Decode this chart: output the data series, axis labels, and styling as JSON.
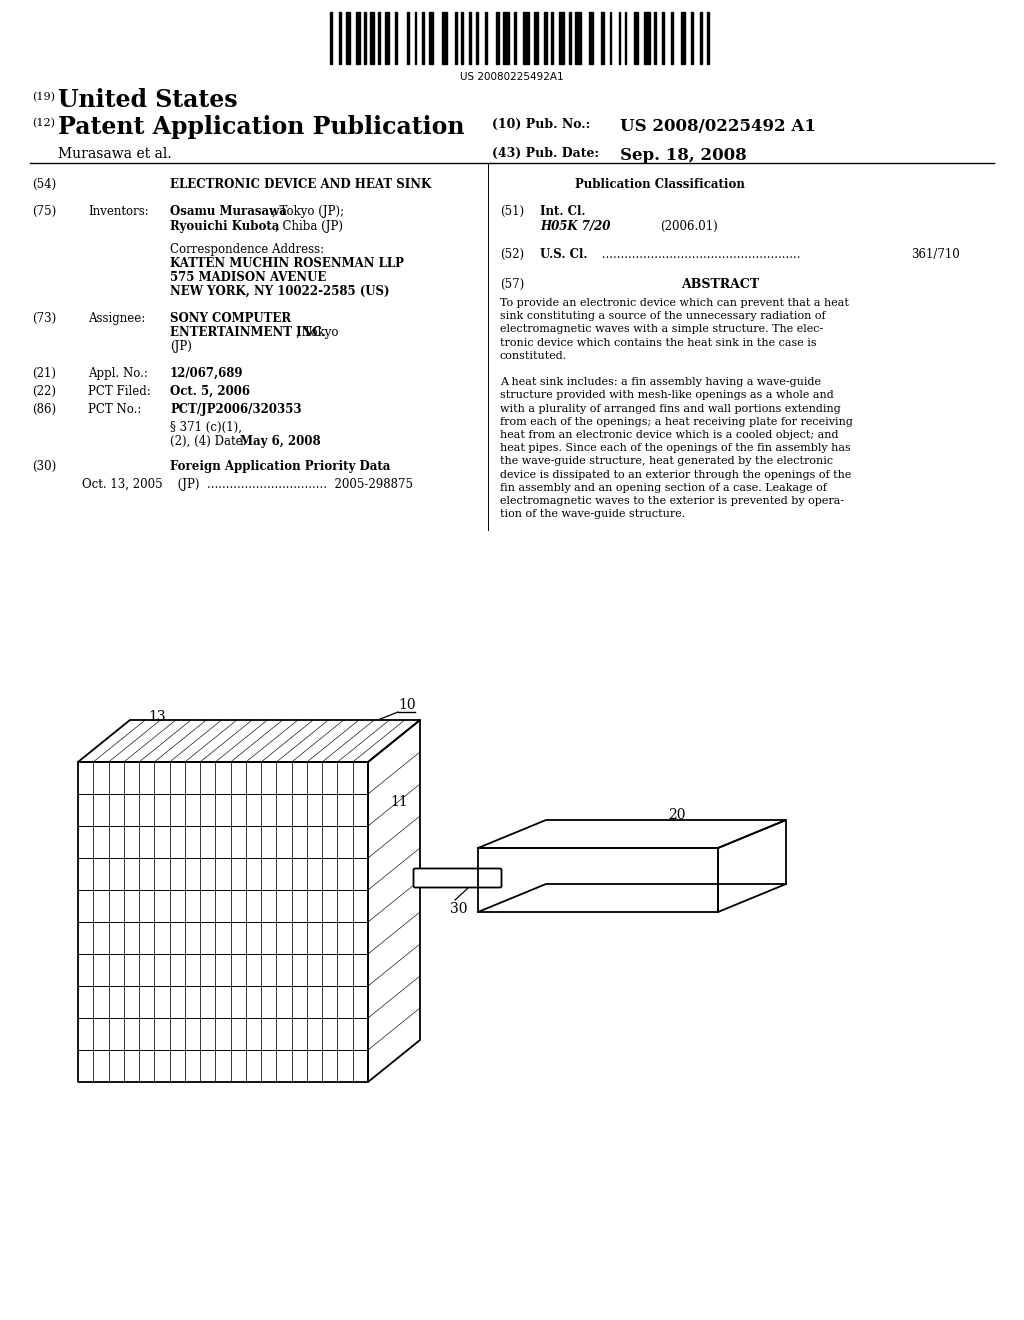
{
  "bg_color": "#ffffff",
  "barcode_text": "US 20080225492A1",
  "header_19_text": "United States",
  "header_12_text": "Patent Application Publication",
  "pub_no_label": "(10) Pub. No.:",
  "pub_no_value": "US 2008/0225492 A1",
  "pub_date_label": "(43) Pub. Date:",
  "pub_date_value": "Sep. 18, 2008",
  "author_line": "Murasawa et al.",
  "field54_text": "ELECTRONIC DEVICE AND HEAT SINK",
  "field75_name": "Inventors:",
  "corr_label": "Correspondence Address:",
  "corr_lines": [
    "KATTEN MUCHIN ROSENMAN LLP",
    "575 MADISON AVENUE",
    "NEW YORK, NY 10022-2585 (US)"
  ],
  "field73_name": "Assignee:",
  "field21_name": "Appl. No.:",
  "field21_value": "12/067,689",
  "field22_name": "PCT Filed:",
  "field22_value": "Oct. 5, 2006",
  "field86_name": "PCT No.:",
  "field86_value": "PCT/JP2006/320353",
  "field86b_line1": "§ 371 (c)(1),",
  "field86b_line2": "(2), (4) Date:",
  "field86b_line3": "May 6, 2008",
  "field30_text": "Foreign Application Priority Data",
  "field30_data": "Oct. 13, 2005    (JP)  ................................  2005-298875",
  "pub_class_title": "Publication Classification",
  "field51_name": "Int. Cl.",
  "field51_class": "H05K 7/20",
  "field51_year": "(2006.01)",
  "field52_name": "U.S. Cl.",
  "field52_value": "361/710",
  "field57_title": "ABSTRACT",
  "abstract_lines": [
    "To provide an electronic device which can prevent that a heat",
    "sink constituting a source of the unnecessary radiation of",
    "electromagnetic waves with a simple structure. The elec-",
    "tronic device which contains the heat sink in the case is",
    "constituted.",
    "",
    "A heat sink includes: a fin assembly having a wave-guide",
    "structure provided with mesh-like openings as a whole and",
    "with a plurality of arranged fins and wall portions extending",
    "from each of the openings; a heat receiving plate for receiving",
    "heat from an electronic device which is a cooled object; and",
    "heat pipes. Since each of the openings of the fin assembly has",
    "the wave-guide structure, heat generated by the electronic",
    "device is dissipated to an exterior through the openings of the",
    "fin assembly and an opening section of a case. Leakage of",
    "electromagnetic waves to the exterior is prevented by opera-",
    "tion of the wave-guide structure."
  ],
  "diagram_label_10": "10",
  "diagram_label_13": "13",
  "diagram_label_11": "11",
  "diagram_label_20": "20",
  "diagram_label_30": "30"
}
